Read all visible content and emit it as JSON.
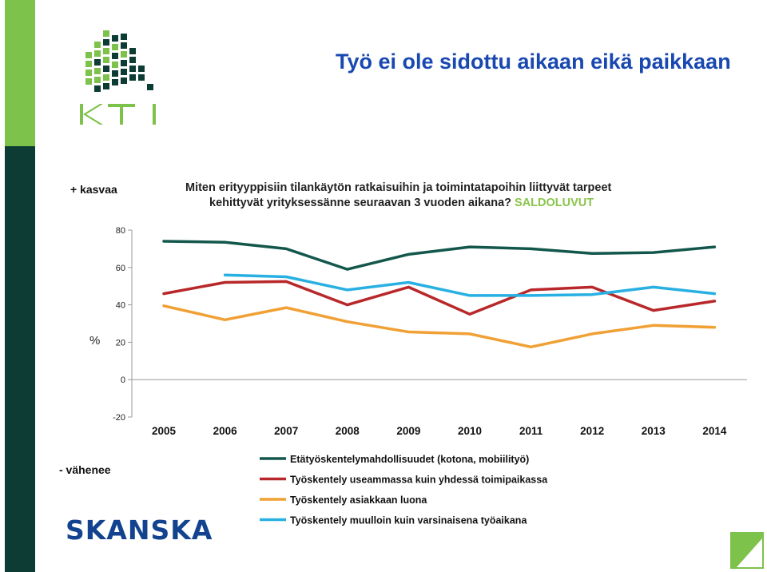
{
  "page": {
    "title": "Työ ei ole sidottu aikaan eikä paikkaan",
    "logo_text": "KTI",
    "brand": "SKANSKA",
    "plus_label": "+ kasvaa",
    "minus_label": "- vähenee"
  },
  "colors": {
    "accent_green": "#7dc24a",
    "dark_green": "#0d3c35",
    "title_blue": "#1848b0",
    "brand_blue": "#13438e"
  },
  "chart_data": {
    "type": "line",
    "title_line1": "Miten erityyppisiin tilankäytön ratkaisuihin ja toimintatapoihin liittyvät tarpeet",
    "title_line2": "kehittyvät yrityksessänne seuraavan 3 vuoden aikana?",
    "title_highlight": "SALDOLUVUT",
    "ylabel": "%",
    "ylim": [
      -20,
      80
    ],
    "yticks": [
      "80",
      "60",
      "40",
      "20",
      "0",
      "-20"
    ],
    "categories": [
      "2005",
      "2006",
      "2007",
      "2008",
      "2009",
      "2010",
      "2011",
      "2012",
      "2013",
      "2014"
    ],
    "legend_position": "bottom",
    "grid": false,
    "series": [
      {
        "name": "Etätyöskentelymahdollisuudet (kotona, mobiilityö)",
        "color": "#13574c",
        "values": [
          74,
          73.5,
          70,
          59,
          67,
          71,
          70,
          67.5,
          68,
          71
        ]
      },
      {
        "name": "Työskentely useammassa kuin yhdessä toimipaikassa",
        "color": "#b8282a",
        "values": [
          46,
          52,
          52.5,
          40,
          49.5,
          35,
          48,
          49.5,
          37,
          42
        ]
      },
      {
        "name": "Työskentely asiakkaan luona",
        "color": "#f0a034",
        "values": [
          39.5,
          32,
          38.5,
          31,
          25.5,
          24.5,
          17.5,
          24.5,
          29,
          28
        ]
      },
      {
        "name": "Työskentely muulloin kuin varsinaisena työaikana",
        "color": "#28b0e2",
        "values": [
          null,
          56,
          55,
          48,
          52,
          45,
          45,
          45.5,
          49.5,
          46
        ]
      }
    ]
  }
}
